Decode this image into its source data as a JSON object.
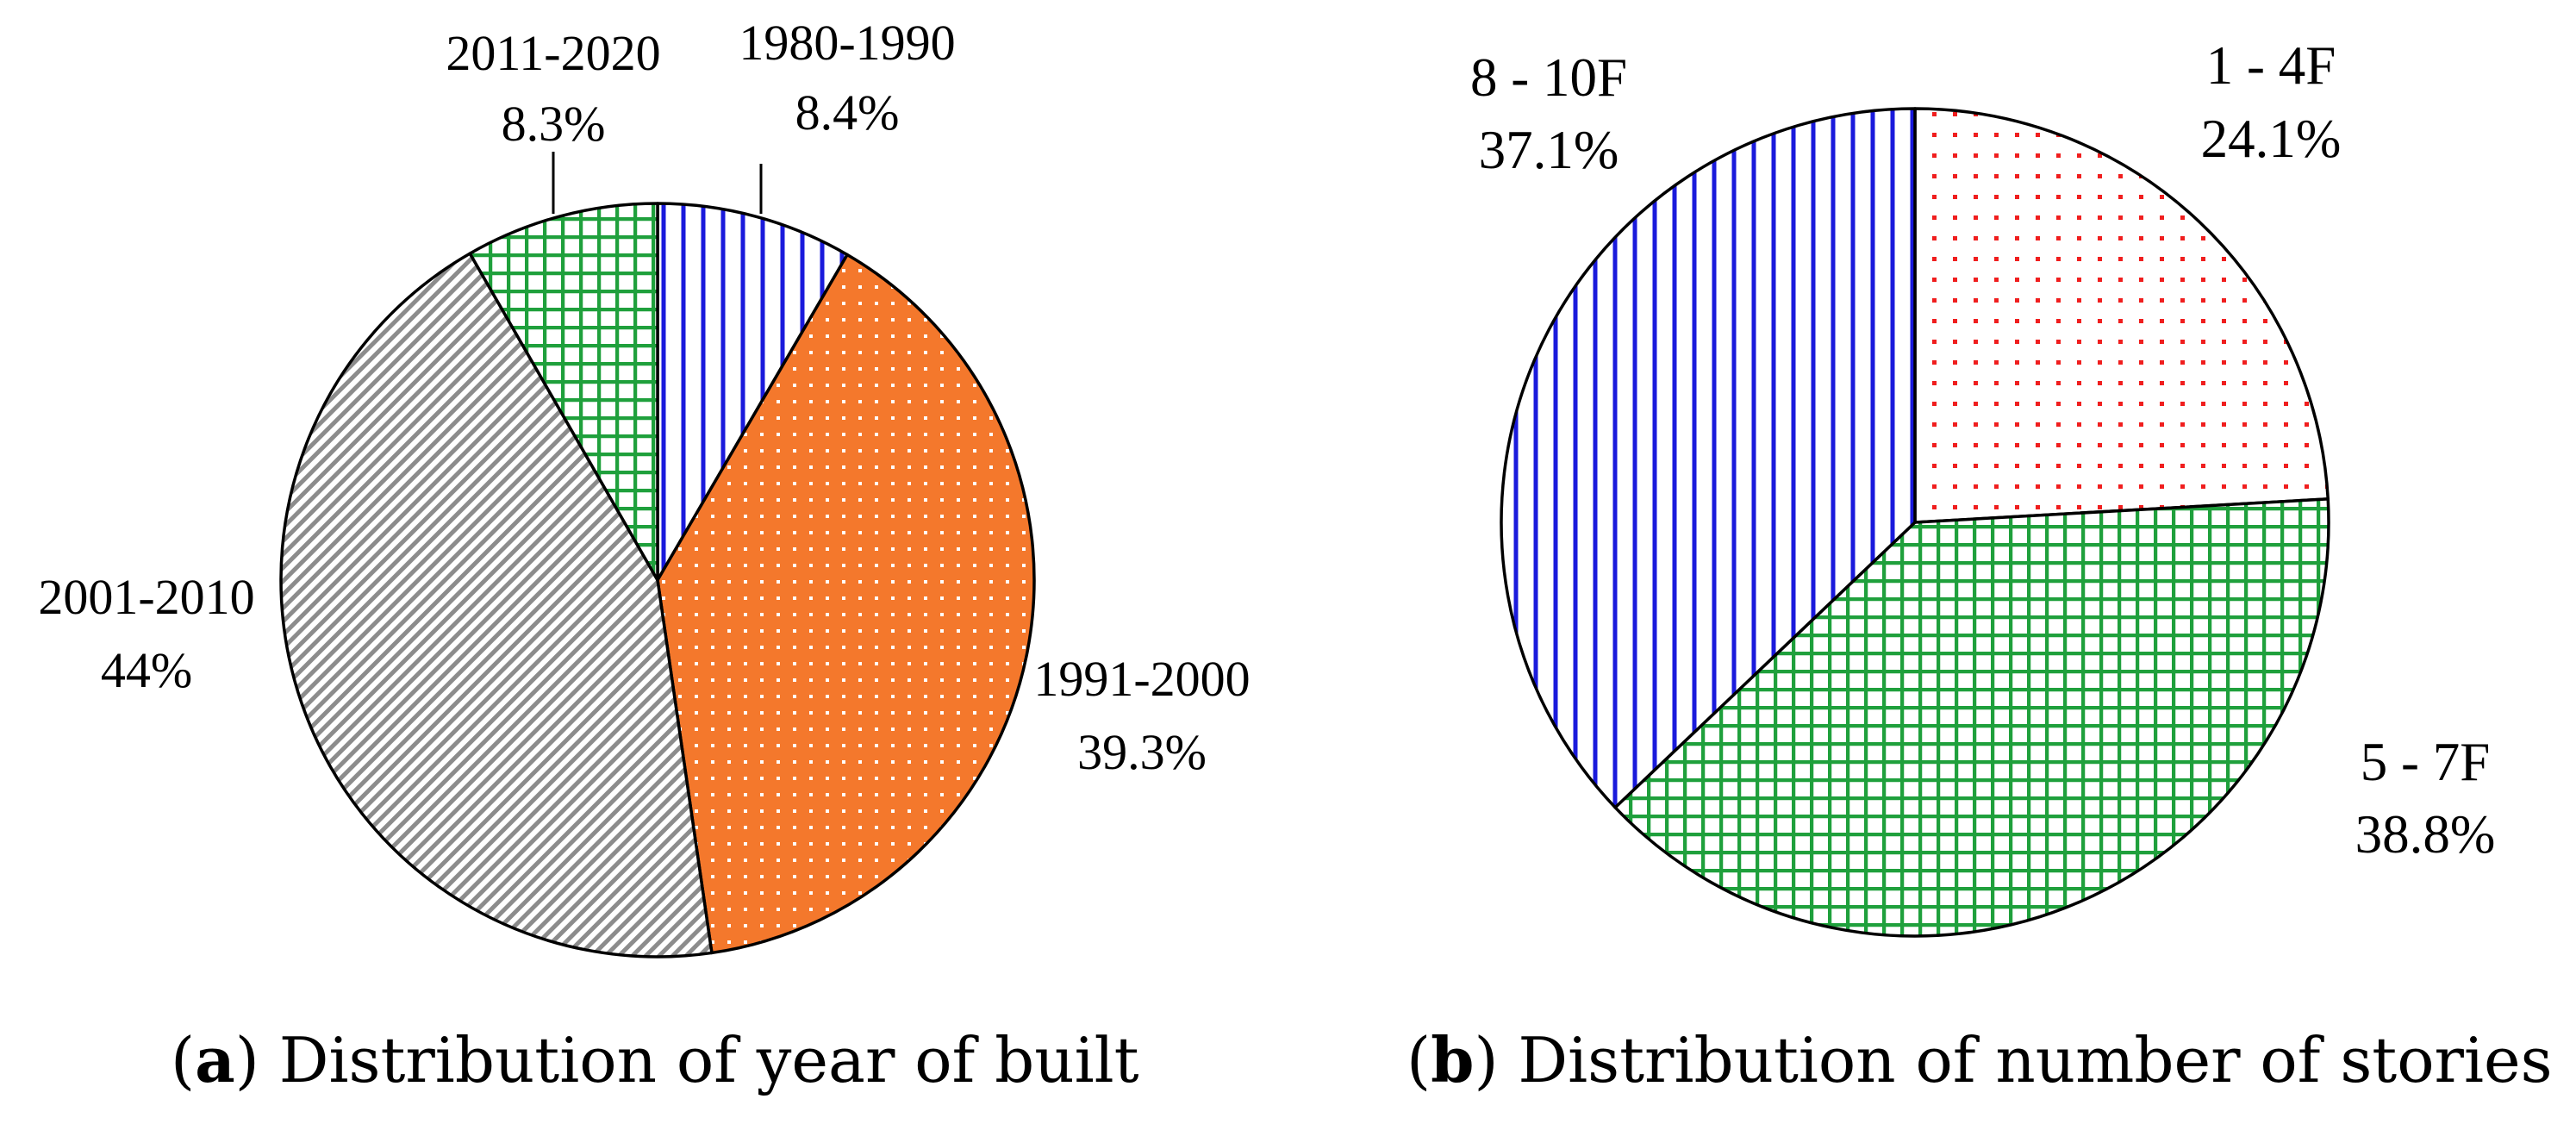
{
  "chart_data": [
    {
      "type": "pie",
      "panel": "a",
      "title": "Distribution of year of built",
      "slices": [
        {
          "label": "1980-1990",
          "value_text": "8.4%",
          "value": 8.4,
          "color": "#1a1adc",
          "pattern": "vertical-lines"
        },
        {
          "label": "1991-2000",
          "value_text": "39.3%",
          "value": 39.3,
          "color": "#f4782c",
          "pattern": "dots"
        },
        {
          "label": "2001-2010",
          "value_text": "44%",
          "value": 44.0,
          "color": "#8c8c8c",
          "pattern": "diagonal-lines"
        },
        {
          "label": "2011-2020",
          "value_text": "8.3%",
          "value": 8.3,
          "color": "#1fa03c",
          "pattern": "grid"
        }
      ]
    },
    {
      "type": "pie",
      "panel": "b",
      "title": "Distribution of number of stories",
      "slices": [
        {
          "label": "1 - 4F",
          "value_text": "24.1%",
          "value": 24.1,
          "color": "#f01e1e",
          "pattern": "dots"
        },
        {
          "label": "5 - 7F",
          "value_text": "38.8%",
          "value": 38.8,
          "color": "#1fa03c",
          "pattern": "grid"
        },
        {
          "label": "8 - 10F",
          "value_text": "37.1%",
          "value": 37.1,
          "color": "#1a1adc",
          "pattern": "vertical-lines"
        }
      ]
    }
  ],
  "captions": {
    "a": {
      "letter": "a",
      "text": "Distribution of year of built"
    },
    "b": {
      "letter": "b",
      "text": "Distribution of number of stories"
    }
  }
}
